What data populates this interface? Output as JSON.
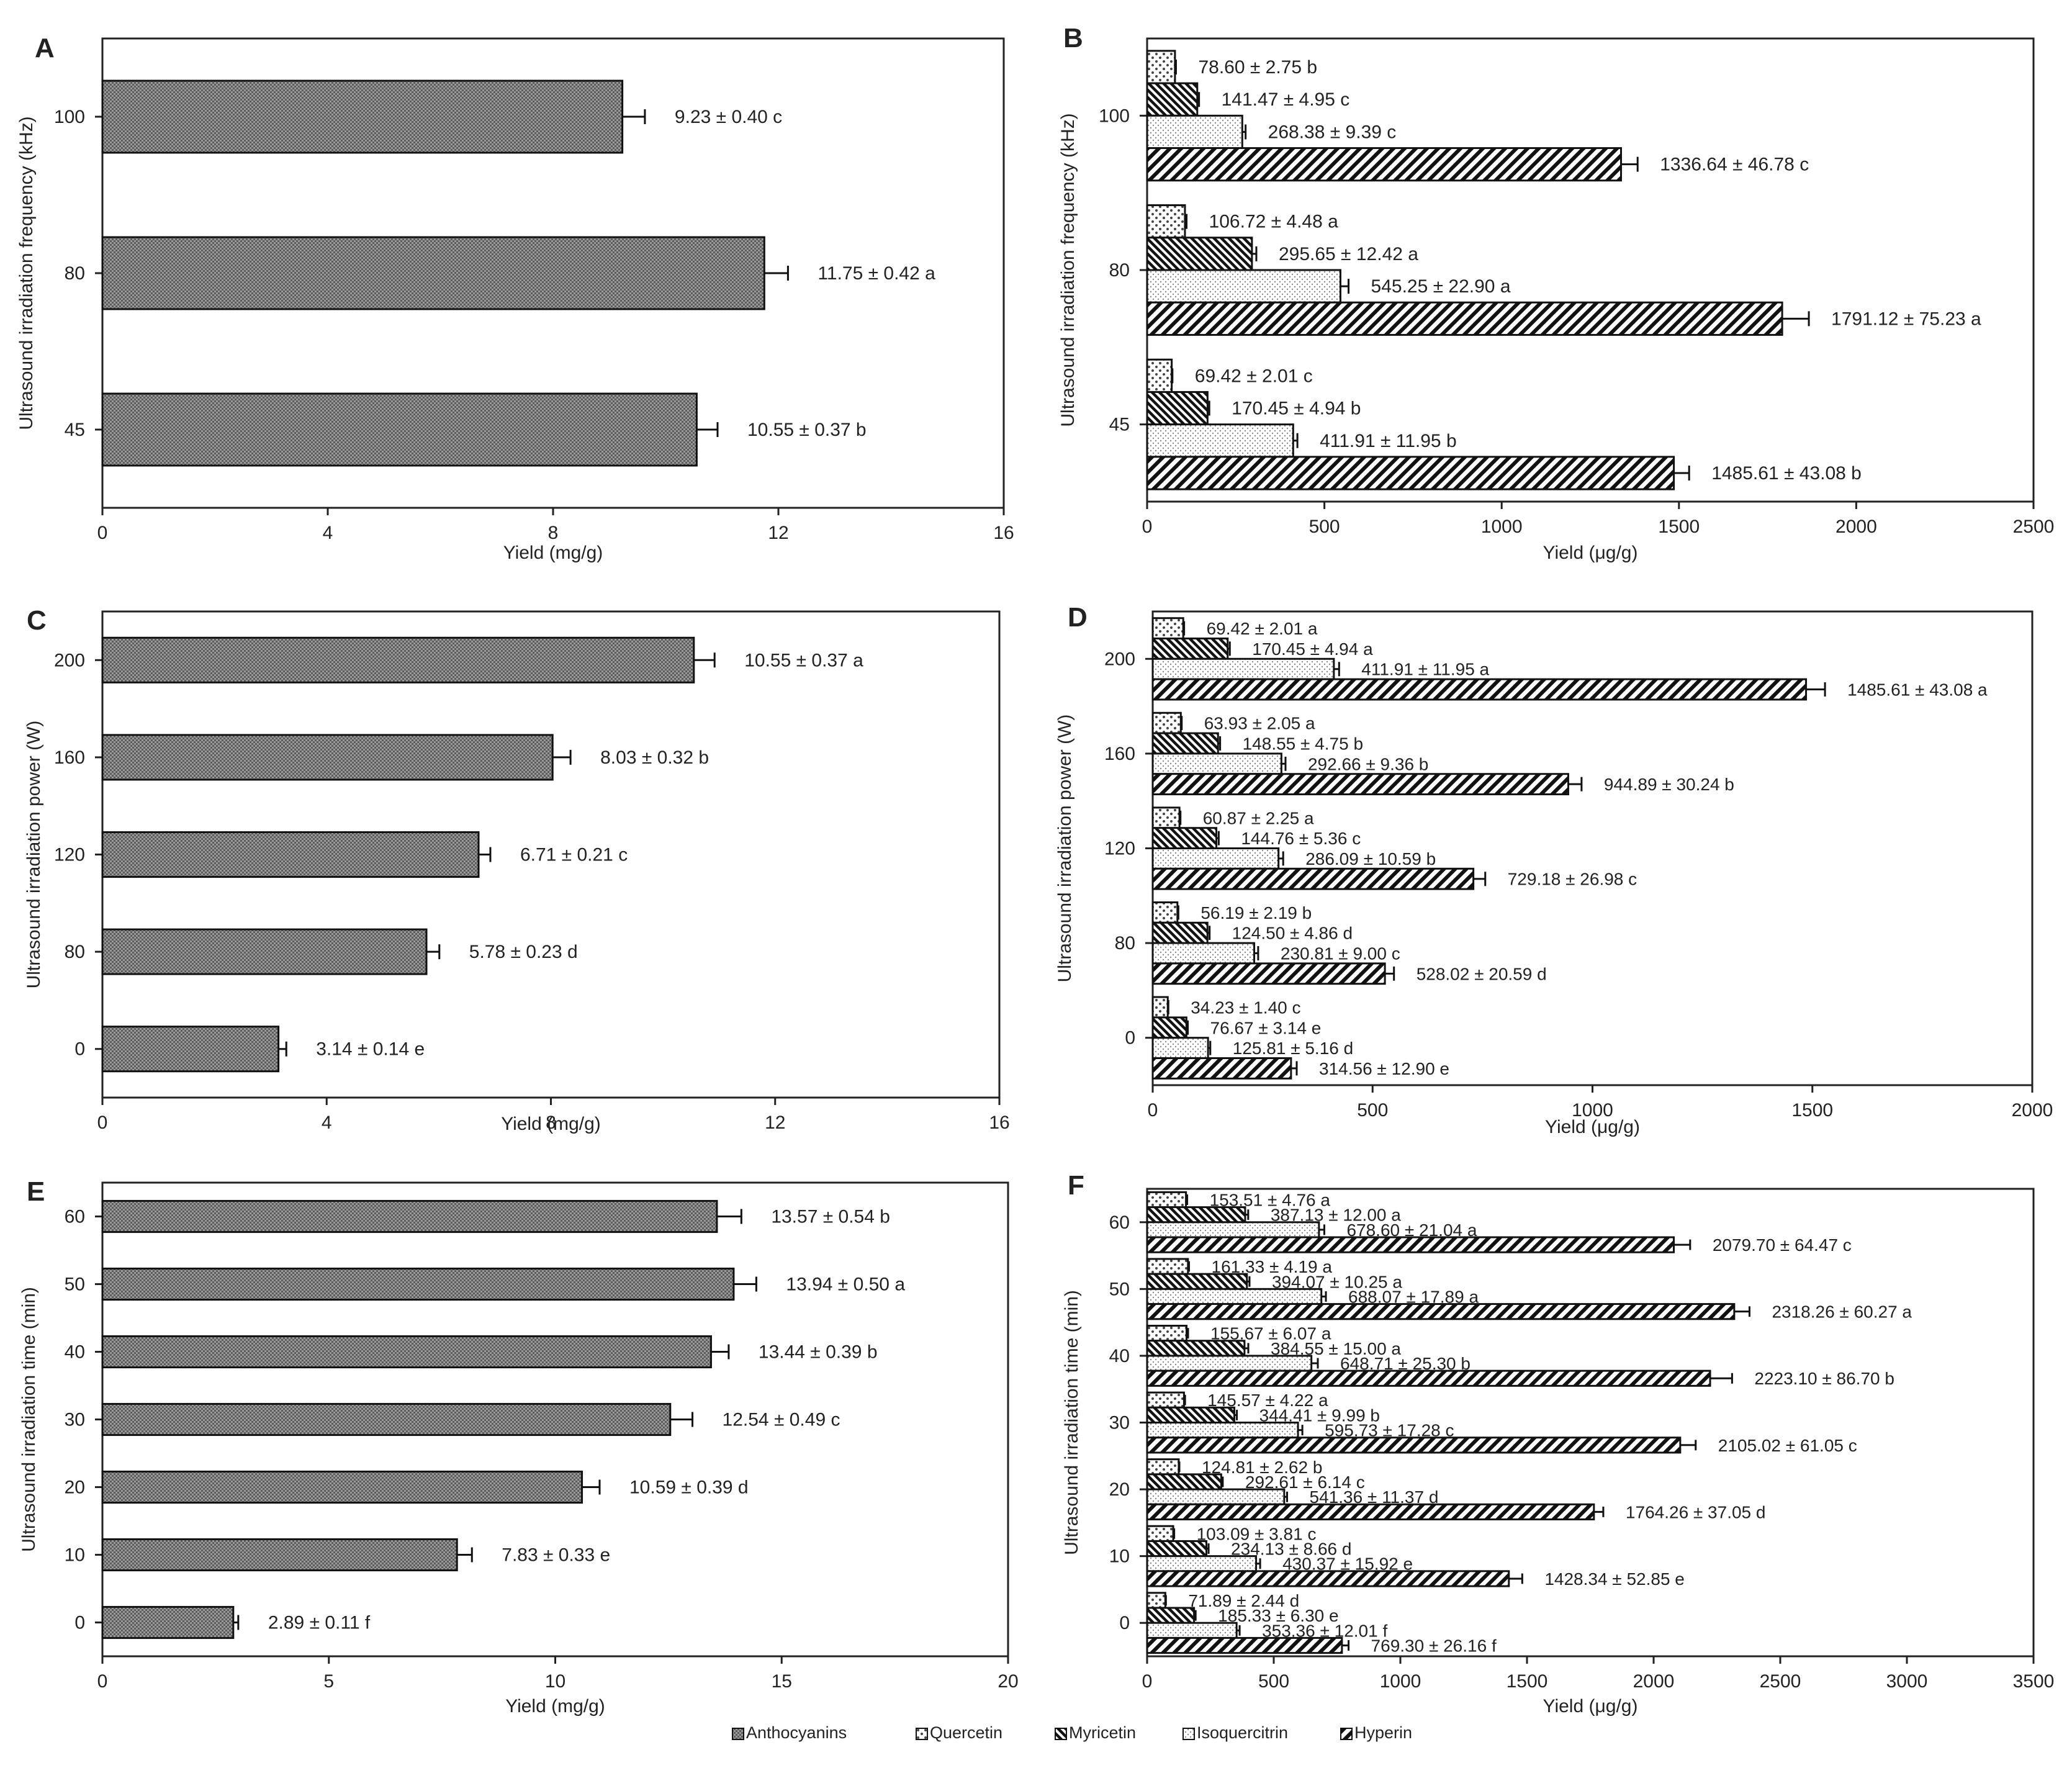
{
  "legend": [
    {
      "key": "anthocyanins",
      "label": "Anthocyanins"
    },
    {
      "key": "quercetin",
      "label": "Quercetin"
    },
    {
      "key": "myricetin",
      "label": "Myricetin"
    },
    {
      "key": "isoquercitrin",
      "label": "Isoquercitrin"
    },
    {
      "key": "hyperin",
      "label": "Hyperin"
    }
  ],
  "chart_data": [
    {
      "panel": "A",
      "type": "bar",
      "orientation": "horizontal",
      "ylabel": "Ultrasound irradiation frequency (kHz)",
      "xlabel": "Yield (mg/g)",
      "xlim": [
        0,
        16
      ],
      "xticks": [
        0,
        4,
        8,
        12,
        16
      ],
      "categories": [
        "45",
        "80",
        "100"
      ],
      "series": [
        {
          "name": "Anthocyanins",
          "key": "anthocyanins",
          "values": [
            10.55,
            11.75,
            9.23
          ],
          "errors": [
            0.37,
            0.42,
            0.4
          ],
          "labels": [
            "10.55 ± 0.37 b",
            "11.75 ± 0.42 a",
            "9.23 ± 0.40 c"
          ]
        }
      ]
    },
    {
      "panel": "B",
      "type": "bar",
      "orientation": "horizontal",
      "ylabel": "Ultrasound irradiation frequency (kHz)",
      "xlabel": "Yield (μg/g)",
      "xlim": [
        0,
        2500
      ],
      "xticks": [
        0,
        500,
        1000,
        1500,
        2000,
        2500
      ],
      "categories": [
        "45",
        "80",
        "100"
      ],
      "series": [
        {
          "name": "Quercetin",
          "key": "quercetin",
          "values": [
            69.42,
            106.72,
            78.6
          ],
          "errors": [
            2.01,
            4.48,
            2.75
          ],
          "labels": [
            "69.42 ± 2.01 c",
            "106.72 ± 4.48 a",
            "78.60 ± 2.75 b"
          ]
        },
        {
          "name": "Myricetin",
          "key": "myricetin",
          "values": [
            170.45,
            295.65,
            141.47
          ],
          "errors": [
            4.94,
            12.42,
            4.95
          ],
          "labels": [
            "170.45 ± 4.94 b",
            "295.65 ± 12.42 a",
            "141.47 ± 4.95 c"
          ]
        },
        {
          "name": "Isoquercitrin",
          "key": "isoquercitrin",
          "values": [
            411.91,
            545.25,
            268.38
          ],
          "errors": [
            11.95,
            22.9,
            9.39
          ],
          "labels": [
            "411.91 ± 11.95 b",
            "545.25 ± 22.90 a",
            "268.38 ± 9.39 c"
          ]
        },
        {
          "name": "Hyperin",
          "key": "hyperin",
          "values": [
            1485.61,
            1791.12,
            1336.64
          ],
          "errors": [
            43.08,
            75.23,
            46.78
          ],
          "labels": [
            "1485.61 ± 43.08 b",
            "1791.12 ± 75.23 a",
            "1336.64 ± 46.78 c"
          ]
        }
      ]
    },
    {
      "panel": "C",
      "type": "bar",
      "orientation": "horizontal",
      "ylabel": "Ultrasound irradiation power (W)",
      "xlabel": "Yield (mg/g)",
      "xlim": [
        0,
        16
      ],
      "xticks": [
        0,
        4,
        8,
        12,
        16
      ],
      "categories": [
        "0",
        "80",
        "120",
        "160",
        "200"
      ],
      "series": [
        {
          "name": "Anthocyanins",
          "key": "anthocyanins",
          "values": [
            3.14,
            5.78,
            6.71,
            8.03,
            10.55
          ],
          "errors": [
            0.14,
            0.23,
            0.21,
            0.32,
            0.37
          ],
          "labels": [
            "3.14 ± 0.14 e",
            "5.78 ± 0.23 d",
            "6.71 ± 0.21 c",
            "8.03 ± 0.32 b",
            "10.55 ± 0.37 a"
          ]
        }
      ]
    },
    {
      "panel": "D",
      "type": "bar",
      "orientation": "horizontal",
      "ylabel": "Ultrasound irradiation power (W)",
      "xlabel": "Yield (μg/g)",
      "xlim": [
        0,
        2000
      ],
      "xticks": [
        0,
        500,
        1000,
        1500,
        2000
      ],
      "categories": [
        "0",
        "80",
        "120",
        "160",
        "200"
      ],
      "series": [
        {
          "name": "Quercetin",
          "key": "quercetin",
          "values": [
            34.23,
            56.19,
            60.87,
            63.93,
            69.42
          ],
          "errors": [
            1.4,
            2.19,
            2.25,
            2.05,
            2.01
          ],
          "labels": [
            "34.23 ± 1.40 c",
            "56.19 ± 2.19 b",
            "60.87 ± 2.25 a",
            "63.93 ± 2.05 a",
            "69.42 ± 2.01 a"
          ]
        },
        {
          "name": "Myricetin",
          "key": "myricetin",
          "values": [
            76.67,
            124.5,
            144.76,
            148.55,
            170.45
          ],
          "errors": [
            3.14,
            4.86,
            5.36,
            4.75,
            4.94
          ],
          "labels": [
            "76.67 ± 3.14 e",
            "124.50 ± 4.86 d",
            "144.76 ± 5.36 c",
            "148.55 ± 4.75 b",
            "170.45 ± 4.94 a"
          ]
        },
        {
          "name": "Isoquercitrin",
          "key": "isoquercitrin",
          "values": [
            125.81,
            230.81,
            286.09,
            292.66,
            411.91
          ],
          "errors": [
            5.16,
            9.0,
            10.59,
            9.36,
            11.95
          ],
          "labels": [
            "125.81 ± 5.16 d",
            "230.81 ± 9.00 c",
            "286.09 ± 10.59 b",
            "292.66 ± 9.36 b",
            "411.91 ± 11.95 a"
          ]
        },
        {
          "name": "Hyperin",
          "key": "hyperin",
          "values": [
            314.56,
            528.02,
            729.18,
            944.89,
            1485.61
          ],
          "errors": [
            12.9,
            20.59,
            26.98,
            30.24,
            43.08
          ],
          "labels": [
            "314.56 ± 12.90 e",
            "528.02 ± 20.59 d",
            "729.18 ± 26.98 c",
            "944.89 ± 30.24 b",
            "1485.61 ± 43.08 a"
          ]
        }
      ]
    },
    {
      "panel": "E",
      "type": "bar",
      "orientation": "horizontal",
      "ylabel": "Ultrasound irradiation time (min)",
      "xlabel": "Yield (mg/g)",
      "xlim": [
        0,
        20
      ],
      "xticks": [
        0,
        5,
        10,
        15,
        20
      ],
      "categories": [
        "0",
        "10",
        "20",
        "30",
        "40",
        "50",
        "60"
      ],
      "series": [
        {
          "name": "Anthocyanins",
          "key": "anthocyanins",
          "values": [
            2.89,
            7.83,
            10.59,
            12.54,
            13.44,
            13.94,
            13.57
          ],
          "errors": [
            0.11,
            0.33,
            0.39,
            0.49,
            0.39,
            0.5,
            0.54
          ],
          "labels": [
            "2.89 ± 0.11 f",
            "7.83 ± 0.33 e",
            "10.59 ± 0.39 d",
            "12.54 ± 0.49 c",
            "13.44 ± 0.39 b",
            "13.94 ± 0.50 a",
            "13.57 ± 0.54 b"
          ]
        }
      ]
    },
    {
      "panel": "F",
      "type": "bar",
      "orientation": "horizontal",
      "ylabel": "Ultrasound irradiation time (min)",
      "xlabel": "Yield (μg/g)",
      "xlim": [
        0,
        3500
      ],
      "xticks": [
        0,
        500,
        1000,
        1500,
        2000,
        2500,
        3000,
        3500
      ],
      "categories": [
        "0",
        "10",
        "20",
        "30",
        "40",
        "50",
        "60"
      ],
      "series": [
        {
          "name": "Quercetin",
          "key": "quercetin",
          "values": [
            71.89,
            103.09,
            124.81,
            145.57,
            155.67,
            161.33,
            153.51
          ],
          "errors": [
            2.44,
            3.81,
            2.62,
            4.22,
            6.07,
            4.19,
            4.76
          ],
          "labels": [
            "71.89 ± 2.44 d",
            "103.09 ± 3.81 c",
            "124.81 ± 2.62 b",
            "145.57 ± 4.22 a",
            "155.67 ± 6.07 a",
            "161.33 ± 4.19 a",
            "153.51 ± 4.76 a"
          ]
        },
        {
          "name": "Myricetin",
          "key": "myricetin",
          "values": [
            185.33,
            234.13,
            292.61,
            344.41,
            384.55,
            394.07,
            387.13
          ],
          "errors": [
            6.3,
            8.66,
            6.14,
            9.99,
            15.0,
            10.25,
            12.0
          ],
          "labels": [
            "185.33 ± 6.30 e",
            "234.13 ± 8.66 d",
            "292.61 ± 6.14 c",
            "344.41 ± 9.99 b",
            "384.55 ± 15.00 a",
            "394.07 ± 10.25 a",
            "387.13 ± 12.00 a"
          ]
        },
        {
          "name": "Isoquercitrin",
          "key": "isoquercitrin",
          "values": [
            353.36,
            430.37,
            541.36,
            595.73,
            648.71,
            688.07,
            678.6
          ],
          "errors": [
            12.01,
            15.92,
            11.37,
            17.28,
            25.3,
            17.89,
            21.04
          ],
          "labels": [
            "353.36 ± 12.01 f",
            "430.37 ± 15.92 e",
            "541.36 ± 11.37 d",
            "595.73 ± 17.28 c",
            "648.71 ± 25.30 b",
            "688.07 ± 17.89 a",
            "678.60 ± 21.04 a"
          ]
        },
        {
          "name": "Hyperin",
          "key": "hyperin",
          "values": [
            769.3,
            1428.34,
            1764.26,
            2105.02,
            2223.1,
            2318.26,
            2079.7
          ],
          "errors": [
            26.16,
            52.85,
            37.05,
            61.05,
            86.7,
            60.27,
            64.47
          ],
          "labels": [
            "769.30 ± 26.16 f",
            "1428.34 ± 52.85 e",
            "1764.26 ± 37.05 d",
            "2105.02 ± 61.05 c",
            "2223.10 ± 86.70 b",
            "2318.26 ± 60.27 a",
            "2079.70 ± 64.47 c"
          ]
        }
      ]
    }
  ]
}
